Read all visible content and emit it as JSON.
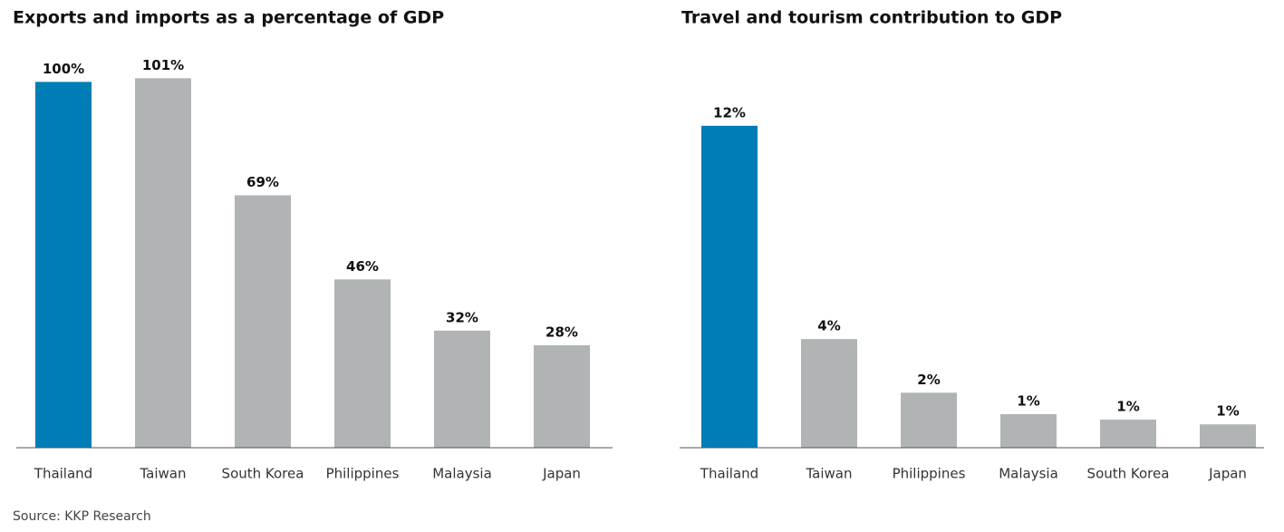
{
  "chart_data": [
    {
      "type": "bar",
      "title": "Exports and imports as a percentage of GDP",
      "categories": [
        "Thailand",
        "Taiwan",
        "South Korea",
        "Philippines",
        "Malaysia",
        "Japan"
      ],
      "values": [
        100,
        101,
        69,
        46,
        32,
        28
      ],
      "value_labels": [
        "100%",
        "101%",
        "69%",
        "46%",
        "32%",
        "28%"
      ],
      "colors": [
        "#007cb6",
        "#b1b4b4",
        "#b1b4b4",
        "#b1b4b4",
        "#b1b4b4",
        "#b1b4b4"
      ],
      "ylim": [
        0,
        110
      ]
    },
    {
      "type": "bar",
      "title": "Travel and tourism contribution to GDP",
      "categories": [
        "Thailand",
        "Taiwan",
        "Philippines",
        "Malaysia",
        "South Korea",
        "Japan"
      ],
      "values": [
        12,
        4.05,
        2.05,
        1.25,
        1.05,
        0.87
      ],
      "value_labels": [
        "12%",
        "4%",
        "2%",
        "1%",
        "1%",
        "1%"
      ],
      "colors": [
        "#007cb6",
        "#b1b4b4",
        "#b1b4b4",
        "#b1b4b4",
        "#b1b4b4",
        "#b1b4b4"
      ],
      "ylim": [
        0,
        15
      ]
    }
  ],
  "source": "Source: KKP Research"
}
